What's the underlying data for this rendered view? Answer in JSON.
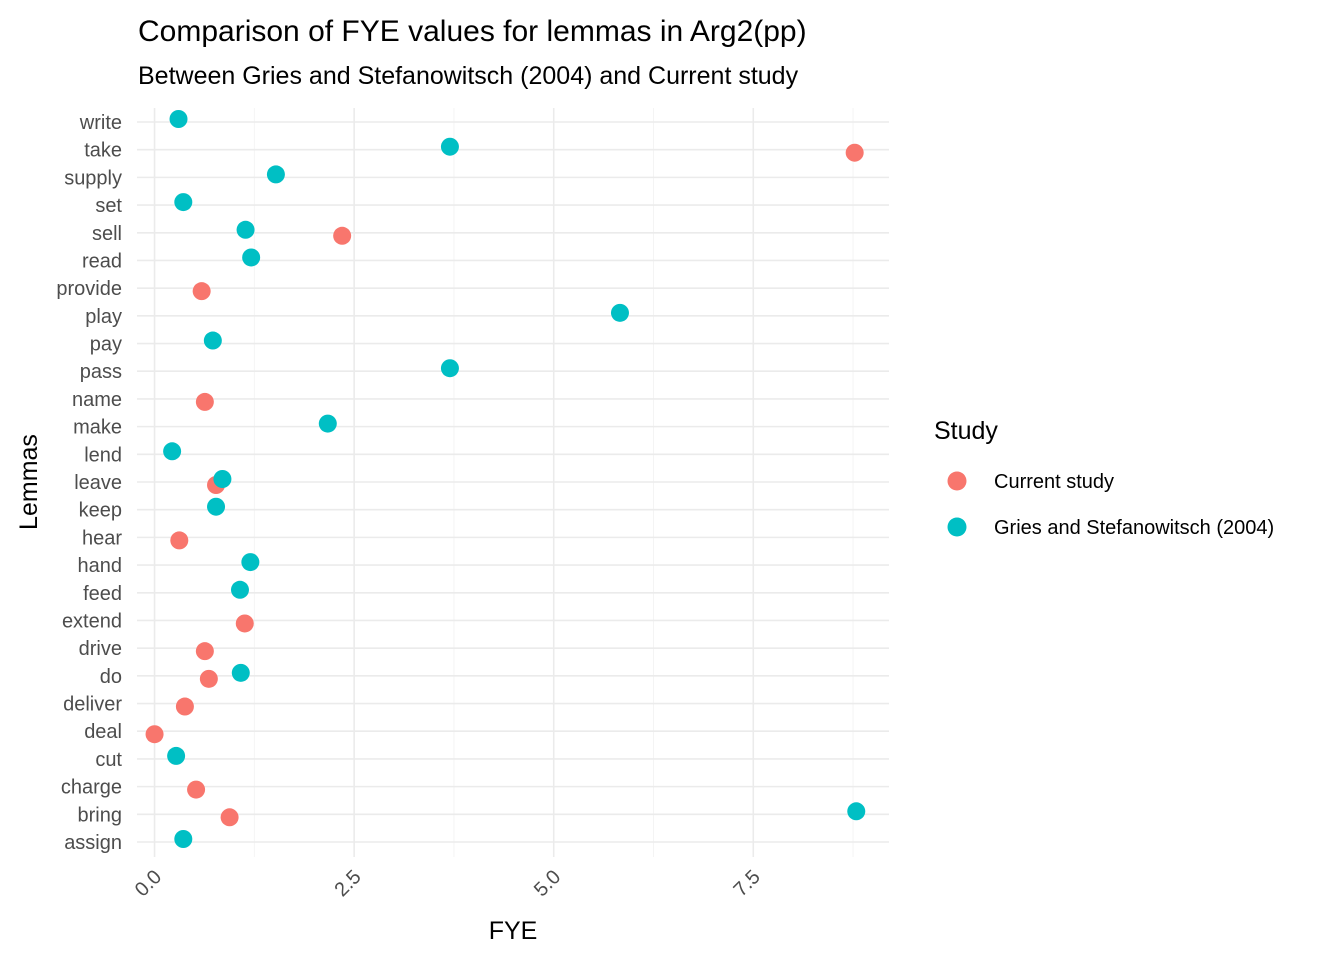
{
  "chart_data": {
    "type": "scatter",
    "title": "Comparison of FYE values for lemmas in Arg2(pp)",
    "subtitle": "Between Gries and Stefanowitsch (2004) and Current study",
    "xlabel": "FYE",
    "ylabel": "Lemmas",
    "xlim": [
      -0.22,
      9.2
    ],
    "x_ticks": [
      0,
      2.5,
      5,
      7.5
    ],
    "x_tick_labels": [
      "0.0",
      "2.5",
      "5.0",
      "7.5"
    ],
    "x_minor_ticks": [
      1.25,
      3.75,
      6.25,
      8.75
    ],
    "categories": [
      "write",
      "take",
      "supply",
      "set",
      "sell",
      "read",
      "provide",
      "play",
      "pay",
      "pass",
      "name",
      "make",
      "lend",
      "leave",
      "keep",
      "hear",
      "hand",
      "feed",
      "extend",
      "drive",
      "do",
      "deliver",
      "deal",
      "cut",
      "charge",
      "bring",
      "assign"
    ],
    "legend_title": "Study",
    "legend_position": "right",
    "grid": true,
    "series": [
      {
        "name": "Current study",
        "color": "#F8766D",
        "points": [
          {
            "lemma": "take",
            "x": 8.77
          },
          {
            "lemma": "sell",
            "x": 2.35
          },
          {
            "lemma": "provide",
            "x": 0.59
          },
          {
            "lemma": "name",
            "x": 0.63
          },
          {
            "lemma": "leave",
            "x": 0.77
          },
          {
            "lemma": "hear",
            "x": 0.31
          },
          {
            "lemma": "extend",
            "x": 1.13
          },
          {
            "lemma": "drive",
            "x": 0.63
          },
          {
            "lemma": "do",
            "x": 0.68
          },
          {
            "lemma": "deliver",
            "x": 0.38
          },
          {
            "lemma": "deal",
            "x": 0.0
          },
          {
            "lemma": "charge",
            "x": 0.52
          },
          {
            "lemma": "bring",
            "x": 0.94
          }
        ]
      },
      {
        "name": "Gries and Stefanowitsch (2004)",
        "color": "#00BFC4",
        "points": [
          {
            "lemma": "write",
            "x": 0.3
          },
          {
            "lemma": "take",
            "x": 3.7
          },
          {
            "lemma": "supply",
            "x": 1.52
          },
          {
            "lemma": "set",
            "x": 0.36
          },
          {
            "lemma": "sell",
            "x": 1.14
          },
          {
            "lemma": "read",
            "x": 1.21
          },
          {
            "lemma": "play",
            "x": 5.83
          },
          {
            "lemma": "pay",
            "x": 0.73
          },
          {
            "lemma": "pass",
            "x": 3.7
          },
          {
            "lemma": "make",
            "x": 2.17
          },
          {
            "lemma": "lend",
            "x": 0.22
          },
          {
            "lemma": "leave",
            "x": 0.85
          },
          {
            "lemma": "keep",
            "x": 0.77
          },
          {
            "lemma": "hand",
            "x": 1.2
          },
          {
            "lemma": "feed",
            "x": 1.07
          },
          {
            "lemma": "do",
            "x": 1.08
          },
          {
            "lemma": "cut",
            "x": 0.27
          },
          {
            "lemma": "bring",
            "x": 8.79
          },
          {
            "lemma": "assign",
            "x": 0.36
          }
        ]
      }
    ]
  }
}
